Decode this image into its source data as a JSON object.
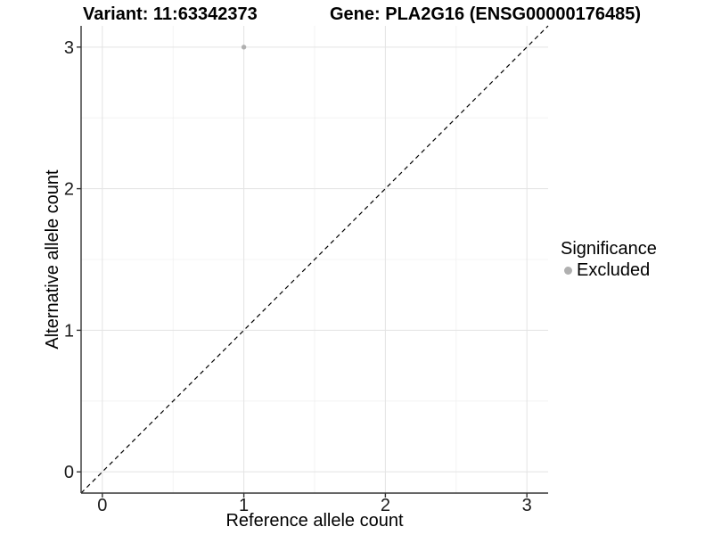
{
  "header": {
    "variant_title": "Variant: 11:63342373",
    "gene_title": "Gene: PLA2G16 (ENSG00000176485)"
  },
  "legend": {
    "title": "Significance",
    "items": [
      {
        "label": "Excluded",
        "color": "#b0b0b0"
      }
    ]
  },
  "chart_data": {
    "type": "scatter",
    "title": "",
    "xlabel": "Reference allele count",
    "ylabel": "Alternative allele count",
    "xlim": [
      -0.15,
      3.15
    ],
    "ylim": [
      -0.15,
      3.15
    ],
    "x_ticks": [
      0,
      1,
      2,
      3
    ],
    "y_ticks": [
      0,
      1,
      2,
      3
    ],
    "x_minor_ticks": [
      0.5,
      1.5,
      2.5
    ],
    "y_minor_ticks": [
      0.5,
      1.5,
      2.5
    ],
    "grid": true,
    "legend_position": "right",
    "legend_title": "Significance",
    "series": [
      {
        "name": "Excluded",
        "color": "#b0b0b0",
        "points": [
          {
            "x": 1,
            "y": 3
          }
        ]
      }
    ],
    "reference_line": {
      "kind": "identity",
      "equation": "y = x",
      "style": "dashed",
      "color": "#000000"
    },
    "colors": {
      "axis_line": "#333333",
      "tick_label": "#1a1a1a",
      "grid_major": "#e3e3e3",
      "grid_minor": "#f0f0f0",
      "point": "#b0b0b0"
    }
  }
}
